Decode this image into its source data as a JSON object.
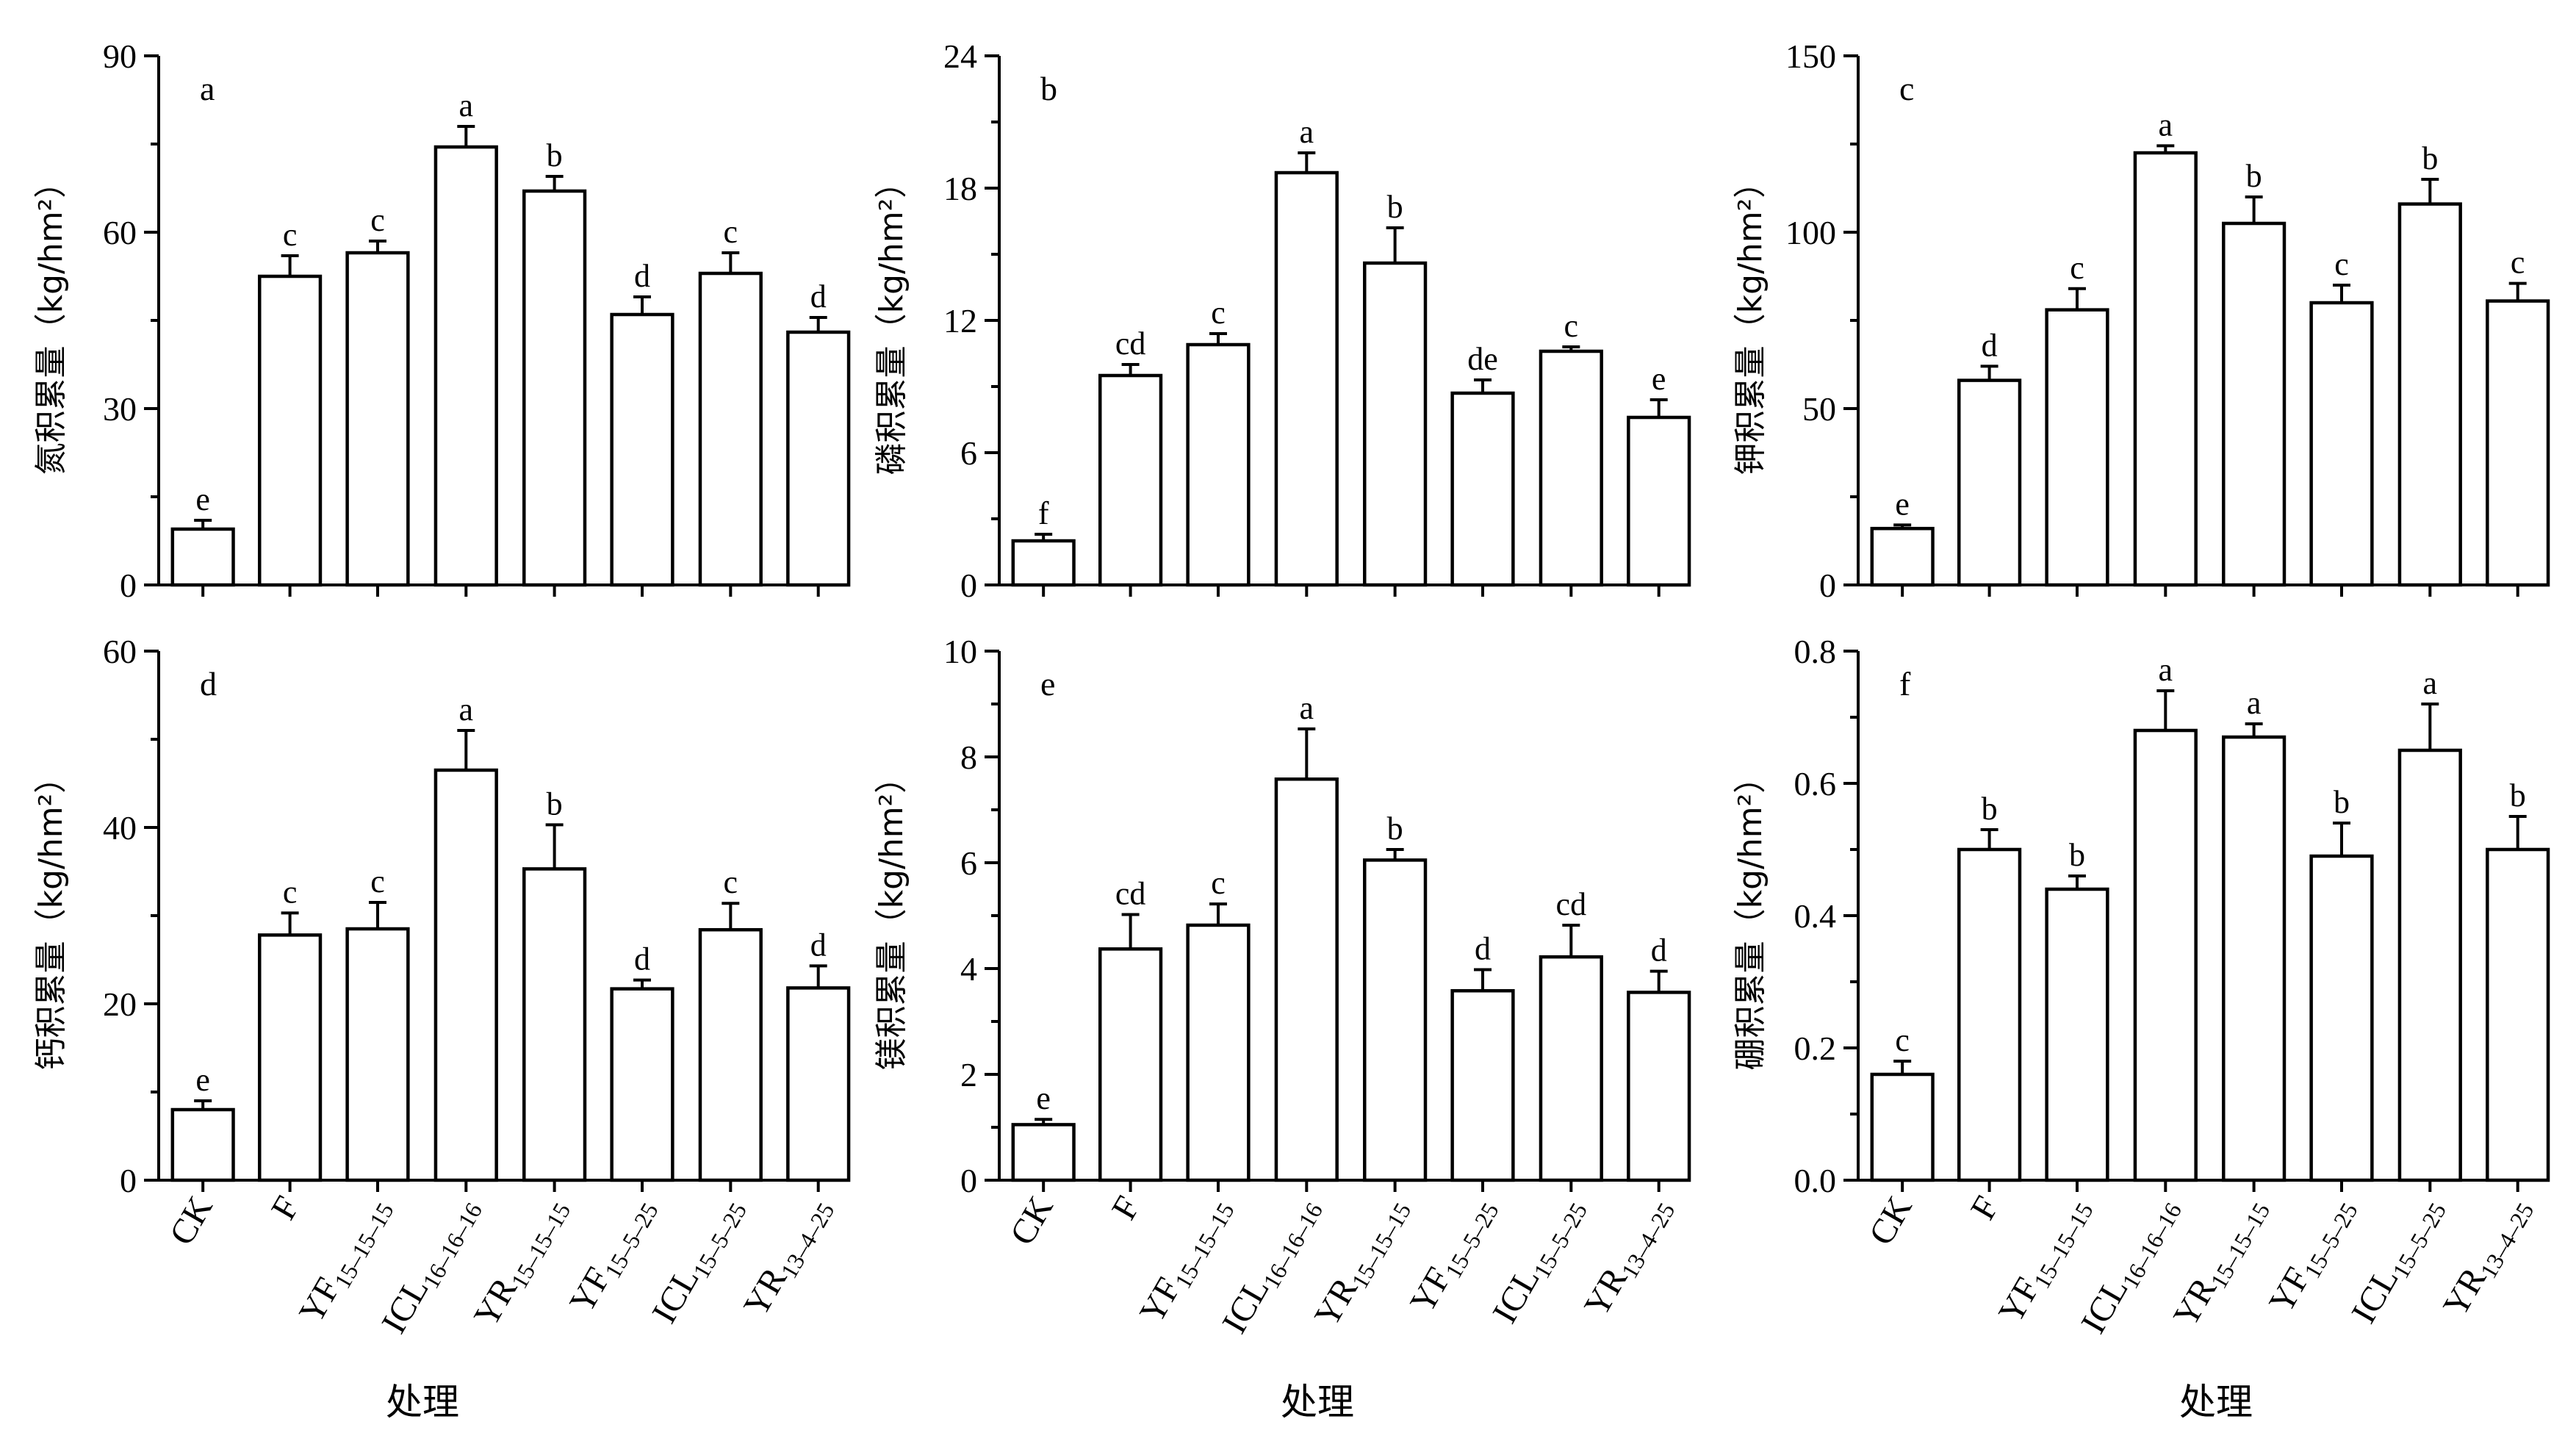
{
  "figure": {
    "x_axis_title": "处理",
    "categories": [
      {
        "main": "CK",
        "sub": ""
      },
      {
        "main": "F",
        "sub": ""
      },
      {
        "main": "YF",
        "sub": "15–15–15"
      },
      {
        "main": "ICL",
        "sub": "16–16–16"
      },
      {
        "main": "YR",
        "sub": "15–15–15"
      },
      {
        "main": "YF",
        "sub": "15–5–25"
      },
      {
        "main": "ICL",
        "sub": "15–5–25"
      },
      {
        "main": "YR",
        "sub": "13–4–25"
      }
    ]
  },
  "chart_data": [
    {
      "type": "bar",
      "panel_label": "a",
      "ylabel": "氮积累量（kg/hm²）",
      "xlabel": "",
      "ylim": [
        0,
        90
      ],
      "yticks": [
        0,
        30,
        60,
        90
      ],
      "categories": [
        "CK",
        "F",
        "YF15–15–15",
        "ICL16–16–16",
        "YR15–15–15",
        "YF15–5–25",
        "ICL15–5–25",
        "YR13–4–25"
      ],
      "values": [
        9.5,
        52.5,
        56.5,
        74.5,
        67,
        46,
        53,
        43
      ],
      "errors": [
        1.5,
        3.5,
        2,
        3.5,
        2.5,
        3,
        3.5,
        2.5
      ],
      "significance": [
        "e",
        "c",
        "c",
        "a",
        "b",
        "d",
        "c",
        "d"
      ]
    },
    {
      "type": "bar",
      "panel_label": "b",
      "ylabel": "磷积累量（kg/hm²）",
      "xlabel": "",
      "ylim": [
        0,
        24
      ],
      "yticks": [
        0,
        6,
        12,
        18,
        24
      ],
      "categories": [
        "CK",
        "F",
        "YF15–15–15",
        "ICL16–16–16",
        "YR15–15–15",
        "YF15–5–25",
        "ICL15–5–25",
        "YR13–4–25"
      ],
      "values": [
        2,
        9.5,
        10.9,
        18.7,
        14.6,
        8.7,
        10.6,
        7.6
      ],
      "errors": [
        0.3,
        0.5,
        0.5,
        0.9,
        1.6,
        0.6,
        0.2,
        0.8
      ],
      "significance": [
        "f",
        "cd",
        "c",
        "a",
        "b",
        "de",
        "c",
        "e"
      ]
    },
    {
      "type": "bar",
      "panel_label": "c",
      "ylabel": "钾积累量（kg/hm²）",
      "xlabel": "",
      "ylim": [
        0,
        150
      ],
      "yticks": [
        0,
        50,
        100,
        150
      ],
      "categories": [
        "CK",
        "F",
        "YF15–15–15",
        "ICL16–16–16",
        "YR15–15–15",
        "YF15–5–25",
        "ICL15–5–25",
        "YR13–4–25"
      ],
      "values": [
        16,
        58,
        78,
        122.5,
        102.5,
        80,
        108,
        80.5
      ],
      "errors": [
        1,
        4,
        6,
        2,
        7.5,
        5,
        7,
        5
      ],
      "significance": [
        "e",
        "d",
        "c",
        "a",
        "b",
        "c",
        "b",
        "c"
      ]
    },
    {
      "type": "bar",
      "panel_label": "d",
      "ylabel": "钙积累量（kg/hm²）",
      "xlabel": "",
      "ylim": [
        0,
        60
      ],
      "yticks": [
        0,
        20,
        40,
        60
      ],
      "categories": [
        "CK",
        "F",
        "YF15–15–15",
        "ICL16–16–16",
        "YR15–15–15",
        "YF15–5–25",
        "ICL15–5–25",
        "YR13–4–25"
      ],
      "values": [
        8,
        27.8,
        28.5,
        46.5,
        35.3,
        21.7,
        28.4,
        21.8
      ],
      "errors": [
        1,
        2.5,
        3,
        4.5,
        5,
        1,
        3,
        2.5
      ],
      "significance": [
        "e",
        "c",
        "c",
        "a",
        "b",
        "d",
        "c",
        "d"
      ]
    },
    {
      "type": "bar",
      "panel_label": "e",
      "ylabel": "镁积累量（kg/hm²）",
      "xlabel": "",
      "ylim": [
        0,
        10
      ],
      "yticks": [
        0,
        2,
        4,
        6,
        8,
        10
      ],
      "categories": [
        "CK",
        "F",
        "YF15–15–15",
        "ICL16–16–16",
        "YR15–15–15",
        "YF15–5–25",
        "ICL15–5–25",
        "YR13–4–25"
      ],
      "values": [
        1.05,
        4.37,
        4.82,
        7.58,
        6.05,
        3.58,
        4.22,
        3.55
      ],
      "errors": [
        0.1,
        0.65,
        0.4,
        0.95,
        0.2,
        0.4,
        0.6,
        0.4
      ],
      "significance": [
        "e",
        "cd",
        "c",
        "a",
        "b",
        "d",
        "cd",
        "d"
      ]
    },
    {
      "type": "bar",
      "panel_label": "f",
      "ylabel": "硼积累量（kg/hm²）",
      "xlabel": "",
      "ylim": [
        0,
        0.8
      ],
      "yticks": [
        "0.0",
        "0.2",
        "0.4",
        "0.6",
        "0.8"
      ],
      "categories": [
        "CK",
        "F",
        "YF15–15–15",
        "ICL16–16–16",
        "YR15–15–15",
        "YF15–5–25",
        "ICL15–5–25",
        "YR13–4–25"
      ],
      "values": [
        0.16,
        0.5,
        0.44,
        0.68,
        0.67,
        0.49,
        0.65,
        0.5
      ],
      "errors": [
        0.02,
        0.03,
        0.02,
        0.06,
        0.02,
        0.05,
        0.07,
        0.05
      ],
      "significance": [
        "c",
        "b",
        "b",
        "a",
        "a",
        "b",
        "a",
        "b"
      ]
    }
  ]
}
